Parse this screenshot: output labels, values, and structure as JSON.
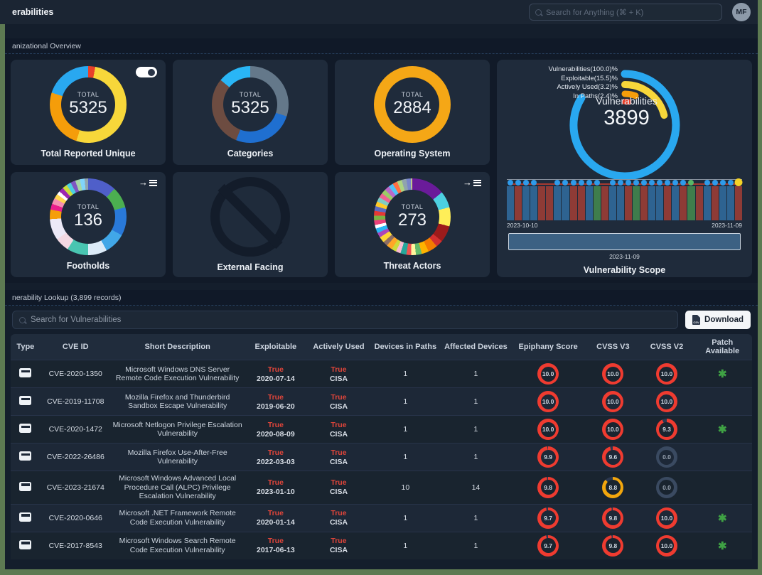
{
  "frame": {
    "border_color": "#5d7a52"
  },
  "topbar": {
    "title": "erabilities",
    "search_placeholder": "Search for Anything (⌘ + K)",
    "avatar_initials": "MF"
  },
  "sections": {
    "overview_label": "anizational Overview",
    "lookup_label": "nerability Lookup (3,899 records)"
  },
  "overview_cards": [
    {
      "name": "Total Reported Unique",
      "total_label": "TOTAL",
      "total": "5325",
      "control": "toggle-on",
      "segments": [
        {
          "color": "#e8402a",
          "pct": 3
        },
        {
          "color": "#f7d73a",
          "pct": 52
        },
        {
          "color": "#f59d0a",
          "pct": 25
        },
        {
          "color": "#29a8f0",
          "pct": 20
        }
      ]
    },
    {
      "name": "Categories",
      "total_label": "TOTAL",
      "total": "5325",
      "segments": [
        {
          "color": "#64788a",
          "pct": 30
        },
        {
          "color": "#1f6fd0",
          "pct": 26
        },
        {
          "color": "#6d4c41",
          "pct": 30
        },
        {
          "color": "#29b6f6",
          "pct": 14
        }
      ]
    },
    {
      "name": "Operating System",
      "total_label": "TOTAL",
      "total": "2884",
      "segments": [
        {
          "color": "#f5a716",
          "pct": 100
        }
      ]
    },
    {
      "name": "Footholds",
      "total_label": "TOTAL",
      "total": "136",
      "control": "forward-to-list",
      "segments": [
        {
          "color": "#4f5fc9",
          "pct": 12
        },
        {
          "color": "#4caf50",
          "pct": 9
        },
        {
          "color": "#2979d9",
          "pct": 12
        },
        {
          "color": "#41a7e8",
          "pct": 9
        },
        {
          "color": "#dcebf8",
          "pct": 8
        },
        {
          "color": "#49c5b1",
          "pct": 9
        },
        {
          "color": "#f3d9e3",
          "pct": 6
        },
        {
          "color": "#ece9f7",
          "pct": 9
        },
        {
          "color": "#f59e0b",
          "pct": 4
        },
        {
          "color": "#e91e8c",
          "pct": 2.5
        },
        {
          "color": "#f48fb1",
          "pct": 2.5
        },
        {
          "color": "#ffd54f",
          "pct": 2
        },
        {
          "color": "#ffffff",
          "pct": 1.5
        },
        {
          "color": "#9c27b0",
          "pct": 2
        },
        {
          "color": "#cddc39",
          "pct": 2
        },
        {
          "color": "#4dd0e1",
          "pct": 2
        },
        {
          "color": "#7e57c2",
          "pct": 2
        },
        {
          "color": "#a5d6a7",
          "pct": 2
        },
        {
          "color": "#81d4fa",
          "pct": 2
        },
        {
          "color": "#90a4ae",
          "pct": 1.5
        }
      ]
    },
    {
      "name": "External Facing",
      "empty": true
    },
    {
      "name": "Threat Actors",
      "total_label": "TOTAL",
      "total": "273",
      "control": "forward-to-list",
      "segments": [
        {
          "color": "#6a1b9a",
          "pct": 14
        },
        {
          "color": "#4dd0e1",
          "pct": 7
        },
        {
          "color": "#ffee58",
          "pct": 8
        },
        {
          "color": "#9c1b1b",
          "pct": 7
        },
        {
          "color": "#d32f2f",
          "pct": 3
        },
        {
          "color": "#f57c00",
          "pct": 4
        },
        {
          "color": "#ffb300",
          "pct": 3
        },
        {
          "color": "#66bb6a",
          "pct": 2.5
        },
        {
          "color": "#fff59d",
          "pct": 2
        },
        {
          "color": "#ef5350",
          "pct": 2
        },
        {
          "color": "#26a69a",
          "pct": 2.5
        },
        {
          "color": "#f8bbd0",
          "pct": 2
        },
        {
          "color": "#cddc39",
          "pct": 2
        },
        {
          "color": "#ffa726",
          "pct": 2.5
        },
        {
          "color": "#8d6e63",
          "pct": 2
        },
        {
          "color": "#fdd835",
          "pct": 2.5
        },
        {
          "color": "#ab47bc",
          "pct": 2
        },
        {
          "color": "#29b6f6",
          "pct": 2
        },
        {
          "color": "#ffffff",
          "pct": 1.5
        },
        {
          "color": "#ec407a",
          "pct": 2
        },
        {
          "color": "#7cb342",
          "pct": 2
        },
        {
          "color": "#e53935",
          "pct": 2
        },
        {
          "color": "#5c6bc0",
          "pct": 2
        },
        {
          "color": "#ffca28",
          "pct": 2
        },
        {
          "color": "#80cbc4",
          "pct": 2
        },
        {
          "color": "#f06292",
          "pct": 2
        },
        {
          "color": "#9ccc65",
          "pct": 2
        },
        {
          "color": "#ba68c8",
          "pct": 2
        },
        {
          "color": "#4fc3f7",
          "pct": 2
        },
        {
          "color": "#ff7043",
          "pct": 2
        },
        {
          "color": "#aed581",
          "pct": 2
        },
        {
          "color": "#90a4ae",
          "pct": 2
        },
        {
          "color": "#7986cb",
          "pct": 2
        },
        {
          "color": "#dce775",
          "pct": 2
        }
      ]
    }
  ],
  "scope_panel": {
    "legend": [
      {
        "label": "Vulnerabilities(100.0)%",
        "color": "#29a8f0"
      },
      {
        "label": "Exploitable(15.5)%",
        "color": "#f7d73a"
      },
      {
        "label": "Actively Used(3.2)%",
        "color": "#f59d0a"
      },
      {
        "label": "In Paths(2.4)%",
        "color": "#e8402a"
      }
    ],
    "arcs": [
      {
        "color": "#29a8f0",
        "r": 72,
        "sweep": 302,
        "width": 11
      },
      {
        "color": "#f7d73a",
        "r": 57,
        "sweep": 76,
        "width": 10
      },
      {
        "color": "#f59d0a",
        "r": 44,
        "sweep": 20,
        "width": 9
      },
      {
        "color": "#e8402a",
        "r": 33,
        "sweep": 9,
        "width": 8
      }
    ],
    "center_label": "Vulnerabilities",
    "center_value": "3899",
    "timeline": {
      "start_date": "2023-10-10",
      "end_date": "2023-11-09",
      "slider_label": "2023-11-09",
      "title": "Vulnerability Scope",
      "dot_colors": {
        "blue": "#2f9bea",
        "green": "#58b868",
        "yellow": "#f5d327"
      },
      "bars": [
        {
          "c": "#2e6391",
          "d": "blue"
        },
        {
          "c": "#8e3b36",
          "d": "blue"
        },
        {
          "c": "#2e6391",
          "d": "blue"
        },
        {
          "c": "#2e6391",
          "d": "blue"
        },
        {
          "c": "#8e3b36",
          "d": "none"
        },
        {
          "c": "#8e3b36",
          "d": "none"
        },
        {
          "c": "#2e6391",
          "d": "blue"
        },
        {
          "c": "#2e6391",
          "d": "blue"
        },
        {
          "c": "#8e3b36",
          "d": "blue"
        },
        {
          "c": "#8e3b36",
          "d": "blue"
        },
        {
          "c": "#2e6391",
          "d": "blue"
        },
        {
          "c": "#3f7d4c",
          "d": "blue"
        },
        {
          "c": "#8e3b36",
          "d": "none"
        },
        {
          "c": "#2e6391",
          "d": "blue"
        },
        {
          "c": "#2e6391",
          "d": "blue"
        },
        {
          "c": "#8e3b36",
          "d": "blue"
        },
        {
          "c": "#3f7d4c",
          "d": "blue"
        },
        {
          "c": "#8e3b36",
          "d": "blue"
        },
        {
          "c": "#2e6391",
          "d": "blue"
        },
        {
          "c": "#2e6391",
          "d": "blue"
        },
        {
          "c": "#8e3b36",
          "d": "blue"
        },
        {
          "c": "#2e6391",
          "d": "blue"
        },
        {
          "c": "#8e3b36",
          "d": "blue"
        },
        {
          "c": "#3f7d4c",
          "d": "green"
        },
        {
          "c": "#8e3b36",
          "d": "none"
        },
        {
          "c": "#2e6391",
          "d": "blue"
        },
        {
          "c": "#8e3b36",
          "d": "blue"
        },
        {
          "c": "#2e6391",
          "d": "blue"
        },
        {
          "c": "#2e6391",
          "d": "blue"
        },
        {
          "c": "#8e3b36",
          "d": "yellow"
        }
      ]
    }
  },
  "lookup": {
    "search_placeholder": "Search for Vulnerabilities",
    "download_label": "Download",
    "csv_icon": "CSV"
  },
  "table": {
    "columns": [
      "Type",
      "CVE ID",
      "Short Description",
      "Exploitable",
      "Actively Used",
      "Devices in Paths",
      "Affected Devices",
      "Epiphany Score",
      "CVSS V3",
      "CVSS V2",
      "Patch Available"
    ],
    "score_colors": {
      "red": "#ef3b30",
      "amber": "#f2a60d",
      "gray": "#3a4a61"
    },
    "rows": [
      {
        "type": "host",
        "cve": "CVE-2020-1350",
        "desc": "Microsoft Windows DNS Server Remote Code Execution Vulnerability",
        "exploitable": "True",
        "exploit_date": "2020-07-14",
        "actively_used": "True",
        "active_source": "CISA",
        "devices_in_paths": "1",
        "affected_devices": "1",
        "epiphany": {
          "value": "10.0",
          "level": "red"
        },
        "cvss_v3": {
          "value": "10.0",
          "level": "red"
        },
        "cvss_v2": {
          "value": "10.0",
          "level": "red"
        },
        "patch_available": true
      },
      {
        "type": "host",
        "cve": "CVE-2019-11708",
        "desc": "Mozilla Firefox and Thunderbird Sandbox Escape Vulnerability",
        "exploitable": "True",
        "exploit_date": "2019-06-20",
        "actively_used": "True",
        "active_source": "CISA",
        "devices_in_paths": "1",
        "affected_devices": "1",
        "epiphany": {
          "value": "10.0",
          "level": "red"
        },
        "cvss_v3": {
          "value": "10.0",
          "level": "red"
        },
        "cvss_v2": {
          "value": "10.0",
          "level": "red"
        },
        "patch_available": false
      },
      {
        "type": "host",
        "cve": "CVE-2020-1472",
        "desc": "Microsoft Netlogon Privilege Escalation Vulnerability",
        "exploitable": "True",
        "exploit_date": "2020-08-09",
        "actively_used": "True",
        "active_source": "CISA",
        "devices_in_paths": "1",
        "affected_devices": "1",
        "epiphany": {
          "value": "10.0",
          "level": "red"
        },
        "cvss_v3": {
          "value": "10.0",
          "level": "red"
        },
        "cvss_v2": {
          "value": "9.3",
          "level": "red"
        },
        "patch_available": true
      },
      {
        "type": "host",
        "cve": "CVE-2022-26486",
        "desc": "Mozilla Firefox Use-After-Free Vulnerability",
        "exploitable": "True",
        "exploit_date": "2022-03-03",
        "actively_used": "True",
        "active_source": "CISA",
        "devices_in_paths": "1",
        "affected_devices": "1",
        "epiphany": {
          "value": "9.9",
          "level": "red"
        },
        "cvss_v3": {
          "value": "9.6",
          "level": "red"
        },
        "cvss_v2": {
          "value": "0.0",
          "level": "gray"
        },
        "patch_available": false
      },
      {
        "type": "host",
        "cve": "CVE-2023-21674",
        "desc": "Microsoft Windows Advanced Local Procedure Call (ALPC) Privilege Escalation Vulnerability",
        "exploitable": "True",
        "exploit_date": "2023-01-10",
        "actively_used": "True",
        "active_source": "CISA",
        "devices_in_paths": "10",
        "affected_devices": "14",
        "epiphany": {
          "value": "9.8",
          "level": "red"
        },
        "cvss_v3": {
          "value": "8.8",
          "level": "amber"
        },
        "cvss_v2": {
          "value": "0.0",
          "level": "gray"
        },
        "patch_available": false
      },
      {
        "type": "host",
        "cve": "CVE-2020-0646",
        "desc": "Microsoft .NET Framework Remote Code Execution Vulnerability",
        "exploitable": "True",
        "exploit_date": "2020-01-14",
        "actively_used": "True",
        "active_source": "CISA",
        "devices_in_paths": "1",
        "affected_devices": "1",
        "epiphany": {
          "value": "9.7",
          "level": "red"
        },
        "cvss_v3": {
          "value": "9.8",
          "level": "red"
        },
        "cvss_v2": {
          "value": "10.0",
          "level": "red"
        },
        "patch_available": true
      },
      {
        "type": "host",
        "cve": "CVE-2017-8543",
        "desc": "Microsoft Windows Search Remote Code Execution Vulnerability",
        "exploitable": "True",
        "exploit_date": "2017-06-13",
        "actively_used": "True",
        "active_source": "CISA",
        "devices_in_paths": "1",
        "affected_devices": "1",
        "epiphany": {
          "value": "9.7",
          "level": "red"
        },
        "cvss_v3": {
          "value": "9.8",
          "level": "red"
        },
        "cvss_v2": {
          "value": "10.0",
          "level": "red"
        },
        "patch_available": true
      }
    ]
  }
}
